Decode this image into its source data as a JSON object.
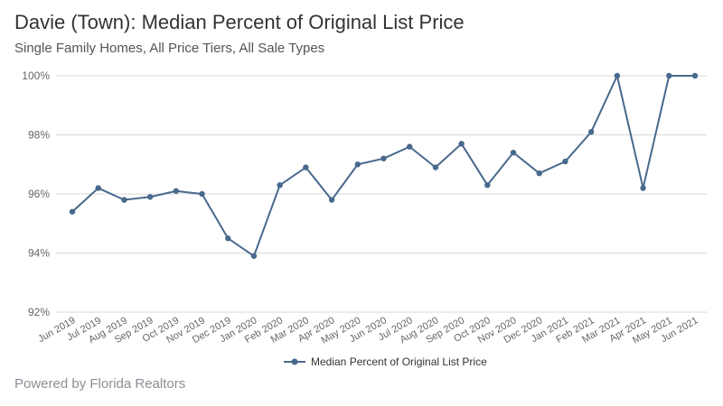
{
  "header": {
    "title": "Davie (Town): Median Percent of Original List Price",
    "subtitle": "Single Family Homes, All Price Tiers, All Sale Types"
  },
  "footer": {
    "text": "Powered by Florida Realtors"
  },
  "colors": {
    "series": "#48698d",
    "grid": "#d9d9d9",
    "text": "#666666"
  },
  "chart_data": {
    "type": "line",
    "title": "Davie (Town): Median Percent of Original List Price",
    "subtitle": "Single Family Homes, All Price Tiers, All Sale Types",
    "xlabel": "",
    "ylabel": "",
    "ylim": [
      92,
      100
    ],
    "yticks": [
      92,
      94,
      96,
      98,
      100
    ],
    "ytick_labels": [
      "92%",
      "94%",
      "96%",
      "98%",
      "100%"
    ],
    "grid": true,
    "legend_position": "bottom-center",
    "categories": [
      "Jun 2019",
      "Jul 2019",
      "Aug 2019",
      "Sep 2019",
      "Oct 2019",
      "Nov 2019",
      "Dec 2019",
      "Jan 2020",
      "Feb 2020",
      "Mar 2020",
      "Apr 2020",
      "May 2020",
      "Jun 2020",
      "Jul 2020",
      "Aug 2020",
      "Sep 2020",
      "Oct 2020",
      "Nov 2020",
      "Dec 2020",
      "Jan 2021",
      "Feb 2021",
      "Mar 2021",
      "Apr 2021",
      "May 2021",
      "Jun 2021"
    ],
    "series": [
      {
        "name": "Median Percent of Original List Price",
        "values": [
          95.4,
          96.2,
          95.8,
          95.9,
          96.1,
          96.0,
          94.5,
          93.9,
          96.3,
          96.9,
          95.8,
          97.0,
          97.2,
          97.6,
          96.9,
          97.7,
          96.3,
          97.4,
          96.7,
          97.1,
          98.1,
          100.0,
          96.2,
          100.0,
          100.0
        ]
      }
    ]
  }
}
